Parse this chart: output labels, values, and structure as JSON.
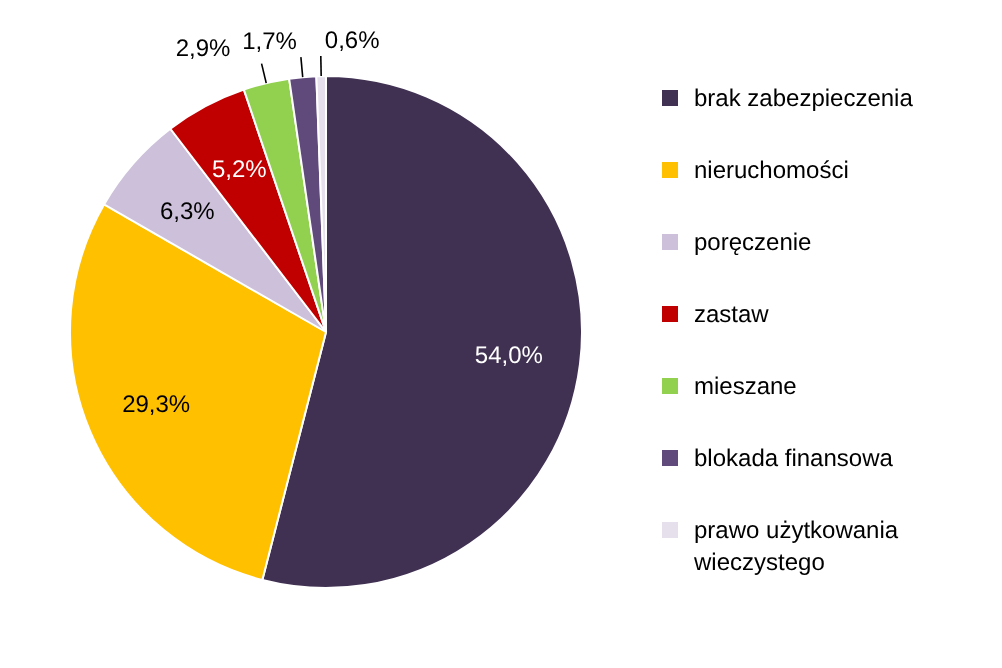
{
  "chart_data": {
    "type": "pie",
    "categories": [
      "brak zabezpieczenia",
      "nieruchomości",
      "poręczenie",
      "zastaw",
      "mieszane",
      "blokada finansowa",
      "prawo użytkowania wieczystego"
    ],
    "values": [
      54.0,
      29.3,
      6.3,
      5.2,
      2.9,
      1.7,
      0.6
    ],
    "value_labels": [
      "54,0%",
      "29,3%",
      "6,3%",
      "5,2%",
      "2,9%",
      "1,7%",
      "0,6%"
    ],
    "colors": [
      "#403152",
      "#ffc000",
      "#ccc0da",
      "#c00000",
      "#92d050",
      "#604a7b",
      "#e6e0ec"
    ],
    "legend": "right"
  }
}
